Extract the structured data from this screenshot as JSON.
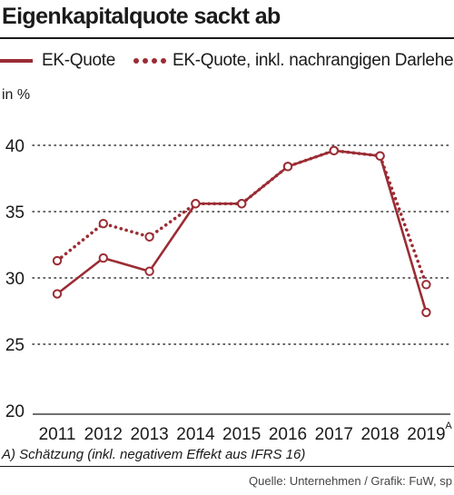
{
  "title": "Eigenkapitalquote sackt ab",
  "unit_label": "in %",
  "footnote": "A) Schätzung (inkl. negativem Effekt aus IFRS 16)",
  "source": "Quelle: Unternehmen / Grafik: FuW, sp",
  "colors": {
    "series": "#9b2c34",
    "grid": "#333333"
  },
  "chart_data": {
    "type": "line",
    "title": "Eigenkapitalquote sackt ab",
    "ylabel": "in %",
    "xlabel": "",
    "x": [
      "2011",
      "2012",
      "2013",
      "2014",
      "2015",
      "2016",
      "2017",
      "2018",
      "2019"
    ],
    "x_superscripts": {
      "2019": "A"
    },
    "ylim": [
      20,
      40
    ],
    "yticks": [
      20,
      25,
      30,
      35,
      40
    ],
    "grid": "horizontal dotted",
    "legend_position": "top",
    "series": [
      {
        "name": "EK-Quote",
        "style": "solid",
        "values": [
          28.8,
          31.5,
          30.5,
          35.6,
          35.6,
          38.4,
          39.6,
          39.2,
          27.4
        ]
      },
      {
        "name": "EK-Quote, inkl. nachrangigen Darlehen",
        "style": "dotted",
        "values": [
          31.3,
          34.1,
          33.1,
          35.6,
          35.6,
          38.4,
          39.6,
          39.2,
          29.5
        ]
      }
    ]
  }
}
